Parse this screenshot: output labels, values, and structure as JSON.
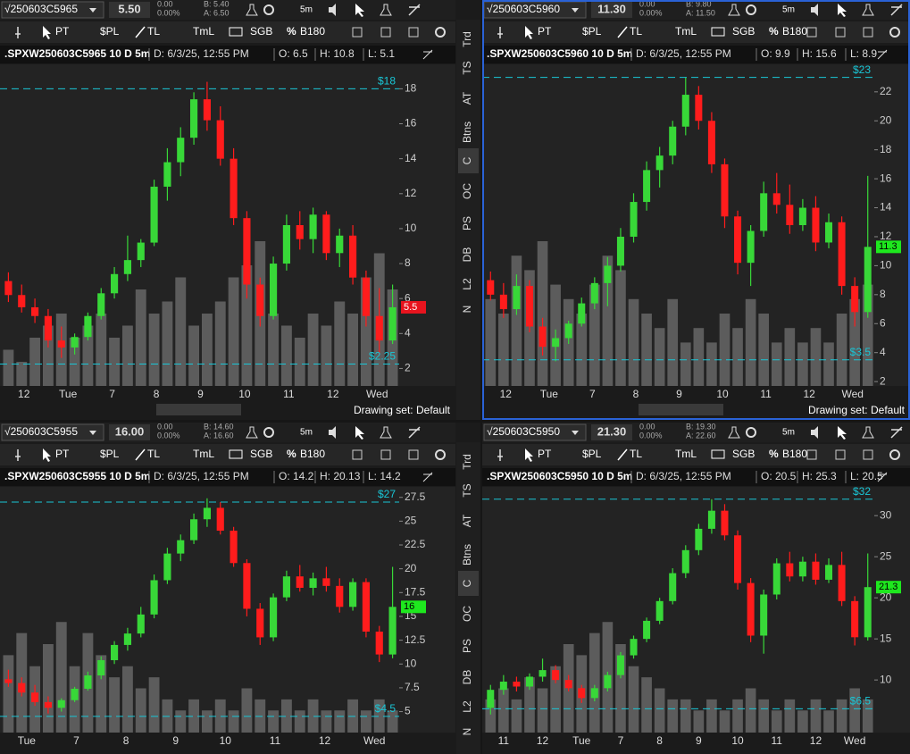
{
  "style": {
    "up": "#38d838",
    "down": "#ff1c1c",
    "volume": "#5c5c5c",
    "line": "#19c6d6"
  },
  "toolbar": {
    "items": [
      "PT",
      "$PL",
      "TL",
      "TmL",
      "SGB",
      "%",
      "B180"
    ],
    "period": "5m"
  },
  "side_tabs": [
    "Trd",
    "TS",
    "AT",
    "Btns",
    "C",
    "OC",
    "PS",
    "DB",
    "L2",
    "N"
  ],
  "drawing_set": "Drawing set: Default",
  "panels": [
    {
      "symbol": "√250603C5965",
      "price": "5.50",
      "change": "0.00",
      "change_pct": "0.00%",
      "bid": "B: 5.40",
      "ask": "A: 6.50",
      "title": {
        "symbol": ".SPXW250603C5965 10 D 5m",
        "date": "D: 6/3/25, 12:55 PM",
        "open": "O: 6.5",
        "high": "H: 10.8",
        "low": "L: 5.1"
      },
      "chart": {
        "ylim": [
          1,
          19.4
        ],
        "yticks": [
          2,
          4,
          6,
          8,
          10,
          12,
          14,
          16,
          18
        ],
        "x_labels": [
          "12",
          "Tue",
          "7",
          "8",
          "9",
          "10",
          "11",
          "12",
          "Wed"
        ],
        "price_lines": [
          {
            "value": 18,
            "label": "$18"
          },
          {
            "value": 2.25,
            "label": "$2.25"
          }
        ],
        "last_price": {
          "value": 5.5,
          "color": "#e8141e"
        },
        "candles": [
          [
            7,
            7.5,
            5.8,
            6.2
          ],
          [
            6.2,
            6.8,
            5.2,
            5.5
          ],
          [
            5.5,
            6,
            4.6,
            5
          ],
          [
            5,
            5.4,
            3.2,
            3.6
          ],
          [
            3.6,
            4.4,
            2.6,
            3.2
          ],
          [
            3.2,
            4,
            2.8,
            3.8
          ],
          [
            3.8,
            5.2,
            3.6,
            5
          ],
          [
            5,
            6.6,
            4.8,
            6.3
          ],
          [
            6.3,
            7.8,
            6,
            7.4
          ],
          [
            7.4,
            9.6,
            7,
            8.2
          ],
          [
            8.2,
            9.4,
            7.8,
            9.2
          ],
          [
            9.2,
            12.8,
            9,
            12.4
          ],
          [
            12.4,
            14.6,
            11.6,
            13.8
          ],
          [
            13.8,
            15.8,
            13,
            15.2
          ],
          [
            15.2,
            17.8,
            14.8,
            17.4
          ],
          [
            17.4,
            18.4,
            15.6,
            16.2
          ],
          [
            16.2,
            17,
            13.6,
            14
          ],
          [
            14,
            14.6,
            10.2,
            10.6
          ],
          [
            10.6,
            11,
            6,
            6.8
          ],
          [
            6.8,
            7.2,
            4.4,
            5
          ],
          [
            5,
            8.4,
            4.8,
            8
          ],
          [
            8,
            10.8,
            7.6,
            10.2
          ],
          [
            10.2,
            11,
            8.8,
            9.4
          ],
          [
            9.4,
            11.2,
            8.6,
            10.8
          ],
          [
            10.8,
            11,
            8.2,
            8.6
          ],
          [
            8.6,
            10,
            7.8,
            9.6
          ],
          [
            9.6,
            10.2,
            6.8,
            7.2
          ],
          [
            7.2,
            7.6,
            4.4,
            5
          ],
          [
            5,
            6.6,
            2.8,
            3.6
          ],
          [
            3.6,
            6.8,
            3.4,
            5.5
          ]
        ],
        "volume": [
          3,
          2,
          4,
          5,
          6,
          4,
          5,
          6,
          4,
          5,
          8,
          6,
          7,
          9,
          5,
          6,
          7,
          9,
          10,
          12,
          6,
          5,
          4,
          6,
          5,
          7,
          6,
          9,
          11,
          8
        ]
      }
    },
    {
      "symbol": "√250603C5960",
      "price": "11.30",
      "change": "0.00",
      "change_pct": "0.00%",
      "bid": "B: 9.80",
      "ask": "A: 11.50",
      "title": {
        "symbol": ".SPXW250603C5960 10 D 5m",
        "date": "D: 6/3/25, 12:55 PM",
        "open": "O: 9.9",
        "high": "H: 15.6",
        "low": "L: 8.9"
      },
      "chart": {
        "ylim": [
          1.7,
          23.9
        ],
        "yticks": [
          2,
          4,
          6,
          8,
          10,
          12,
          14,
          16,
          18,
          20,
          22
        ],
        "x_labels": [
          "12",
          "Tue",
          "7",
          "8",
          "9",
          "10",
          "11",
          "12",
          "Wed"
        ],
        "price_lines": [
          {
            "value": 23,
            "label": "$23"
          },
          {
            "value": 3.5,
            "label": "$3.5"
          }
        ],
        "last_price": {
          "value": 11.3,
          "color": "#1ee81e"
        },
        "candles": [
          [
            9,
            9.6,
            7.6,
            8
          ],
          [
            8,
            8.8,
            6.4,
            7
          ],
          [
            7,
            9.4,
            6.6,
            8.6
          ],
          [
            8.6,
            9,
            5.4,
            5.8
          ],
          [
            5.8,
            6.4,
            3.8,
            4.4
          ],
          [
            4.4,
            5.6,
            3.4,
            5
          ],
          [
            5,
            6.2,
            4.6,
            6
          ],
          [
            6,
            7.8,
            5.8,
            7.4
          ],
          [
            7.4,
            9.2,
            7,
            8.8
          ],
          [
            8.8,
            10.6,
            7.2,
            10
          ],
          [
            10,
            12.6,
            9.6,
            12
          ],
          [
            12,
            15,
            11.6,
            14.4
          ],
          [
            14.4,
            17.2,
            13.8,
            16.6
          ],
          [
            16.6,
            18.2,
            15.4,
            17.6
          ],
          [
            17.6,
            20,
            17,
            19.6
          ],
          [
            19.6,
            23,
            19,
            21.8
          ],
          [
            21.8,
            22.4,
            19.4,
            20
          ],
          [
            20,
            20.6,
            16.4,
            17
          ],
          [
            17,
            17.4,
            12.6,
            13.4
          ],
          [
            13.4,
            13.8,
            9.4,
            10.2
          ],
          [
            10.2,
            12.8,
            8.6,
            12.4
          ],
          [
            12.4,
            15.8,
            12,
            15
          ],
          [
            15,
            16.4,
            13.6,
            14.2
          ],
          [
            14.2,
            15.6,
            12.2,
            12.8
          ],
          [
            12.8,
            14.6,
            12.4,
            14
          ],
          [
            14,
            14.8,
            11,
            11.6
          ],
          [
            11.6,
            13.6,
            11.2,
            13
          ],
          [
            13,
            13.4,
            8,
            8.6
          ],
          [
            8.6,
            9.2,
            5.8,
            6.8
          ],
          [
            6.8,
            16.2,
            6.4,
            11.3
          ]
        ],
        "volume": [
          6,
          5,
          9,
          8,
          10,
          7,
          6,
          5,
          7,
          9,
          8,
          6,
          5,
          4,
          6,
          3,
          4,
          3,
          5,
          4,
          6,
          5,
          3,
          4,
          3,
          4,
          3,
          5,
          6,
          7
        ]
      }
    },
    {
      "symbol": "√250603C5955",
      "price": "16.00",
      "change": "0.00",
      "change_pct": "0.00%",
      "bid": "B: 14.60",
      "ask": "A: 16.60",
      "title": {
        "symbol": ".SPXW250603C5955 10 D 5m",
        "date": "D: 6/3/25, 12:55 PM",
        "open": "O: 14.2",
        "high": "H: 20.13",
        "low": "L: 14.2"
      },
      "chart": {
        "ylim": [
          2.8,
          28.6
        ],
        "yticks": [
          5,
          7.5,
          10,
          12.5,
          15,
          17.5,
          20,
          22.5,
          25,
          27.5
        ],
        "x_labels": [
          "Tue",
          "7",
          "8",
          "9",
          "10",
          "11",
          "12",
          "Wed"
        ],
        "price_lines": [
          {
            "value": 27,
            "label": "$27"
          },
          {
            "value": 4.5,
            "label": "$4.5"
          }
        ],
        "last_price": {
          "value": 16,
          "color": "#1ee81e"
        },
        "candles": [
          [
            8.4,
            9.4,
            7.6,
            8
          ],
          [
            8,
            8.6,
            6.6,
            7
          ],
          [
            7,
            7.8,
            5.6,
            6
          ],
          [
            6,
            6.6,
            4.8,
            5.4
          ],
          [
            5.4,
            6.4,
            5,
            6.2
          ],
          [
            6.2,
            7.6,
            6,
            7.4
          ],
          [
            7.4,
            9.2,
            7.2,
            8.8
          ],
          [
            8.8,
            10.8,
            8.4,
            10.4
          ],
          [
            10.4,
            12.4,
            10,
            12
          ],
          [
            12,
            13.8,
            11.4,
            13.2
          ],
          [
            13.2,
            16,
            12.8,
            15.2
          ],
          [
            15.2,
            19.4,
            14.8,
            18.8
          ],
          [
            18.8,
            22.2,
            18.4,
            21.6
          ],
          [
            21.6,
            23.6,
            20.8,
            23
          ],
          [
            23,
            25.8,
            22.6,
            25.2
          ],
          [
            25.2,
            27.4,
            24.4,
            26.4
          ],
          [
            26.4,
            27,
            23.6,
            24
          ],
          [
            24,
            24.4,
            20.2,
            20.6
          ],
          [
            20.6,
            21,
            15,
            15.8
          ],
          [
            15.8,
            16.4,
            12,
            12.8
          ],
          [
            12.8,
            17.4,
            12.4,
            17
          ],
          [
            17,
            19.8,
            16.6,
            19.2
          ],
          [
            19.2,
            20.4,
            17.6,
            18
          ],
          [
            18,
            19.6,
            17.2,
            19
          ],
          [
            19,
            20.2,
            17.6,
            18.2
          ],
          [
            18.2,
            19,
            15.4,
            16
          ],
          [
            16,
            19,
            15.6,
            18.6
          ],
          [
            18.6,
            19,
            12.8,
            13.4
          ],
          [
            13.4,
            14,
            10.2,
            11
          ],
          [
            11,
            20.2,
            10.6,
            16
          ]
        ],
        "volume": [
          7,
          9,
          6,
          8,
          10,
          6,
          9,
          7,
          5,
          6,
          4,
          5,
          3,
          2,
          3,
          2,
          3,
          2,
          4,
          3,
          2,
          3,
          2,
          3,
          2,
          2,
          3,
          2,
          3,
          2
        ]
      }
    },
    {
      "symbol": "√250603C5950",
      "price": "21.30",
      "change": "0.00",
      "change_pct": "0.00%",
      "bid": "B: 19.30",
      "ask": "A: 22.60",
      "title": {
        "symbol": ".SPXW250603C5950 10 D 5m",
        "date": "D: 6/3/25, 12:55 PM",
        "open": "O: 20.5",
        "high": "H: 25.3",
        "low": "L: 20.5"
      },
      "chart": {
        "ylim": [
          3.6,
          33.5
        ],
        "yticks": [
          10,
          15,
          20,
          25,
          30
        ],
        "x_labels": [
          "11",
          "12",
          "Tue",
          "7",
          "8",
          "9",
          "10",
          "11",
          "12",
          "Wed"
        ],
        "price_lines": [
          {
            "value": 32,
            "label": "$32"
          },
          {
            "value": 6.5,
            "label": "$6.5"
          }
        ],
        "last_price": {
          "value": 21.3,
          "color": "#1ee81e"
        },
        "candles": [
          [
            6.6,
            9.4,
            5.8,
            8.8
          ],
          [
            8.8,
            10.6,
            8.2,
            9.8
          ],
          [
            9.8,
            10.4,
            8.6,
            9.2
          ],
          [
            9.2,
            10.8,
            8.8,
            10.4
          ],
          [
            10.4,
            12.6,
            9.8,
            11.2
          ],
          [
            11.2,
            11.8,
            9.6,
            10
          ],
          [
            10,
            10.6,
            8.6,
            9
          ],
          [
            9,
            9.4,
            7.2,
            7.8
          ],
          [
            7.8,
            9.4,
            7.4,
            9
          ],
          [
            9,
            11,
            8.6,
            10.6
          ],
          [
            10.6,
            13.4,
            10.2,
            13
          ],
          [
            13,
            15.4,
            12.6,
            15
          ],
          [
            15,
            17.6,
            14.6,
            17.2
          ],
          [
            17.2,
            20,
            16.8,
            19.6
          ],
          [
            19.6,
            23.6,
            19.2,
            23
          ],
          [
            23,
            26.4,
            22.4,
            25.8
          ],
          [
            25.8,
            29,
            25.2,
            28.4
          ],
          [
            28.4,
            32,
            27.8,
            30.6
          ],
          [
            30.6,
            31.4,
            27,
            27.6
          ],
          [
            27.6,
            28.2,
            21,
            21.8
          ],
          [
            21.8,
            22.4,
            14.6,
            15.4
          ],
          [
            15.4,
            21,
            13.2,
            20.4
          ],
          [
            20.4,
            24.8,
            19.8,
            24.2
          ],
          [
            24.2,
            25.6,
            22,
            22.6
          ],
          [
            22.6,
            25,
            22,
            24.4
          ],
          [
            24.4,
            25.4,
            21.6,
            22.2
          ],
          [
            22.2,
            24.8,
            21.8,
            24
          ],
          [
            24,
            25.6,
            19,
            19.6
          ],
          [
            19.6,
            20.2,
            14.2,
            15.2
          ],
          [
            15.2,
            25.4,
            14.8,
            21.3
          ]
        ],
        "volume": [
          3,
          4,
          3,
          5,
          4,
          6,
          8,
          7,
          9,
          10,
          8,
          6,
          5,
          4,
          3,
          3,
          2,
          3,
          2,
          3,
          4,
          3,
          2,
          3,
          2,
          3,
          2,
          3,
          4,
          3
        ]
      }
    }
  ]
}
